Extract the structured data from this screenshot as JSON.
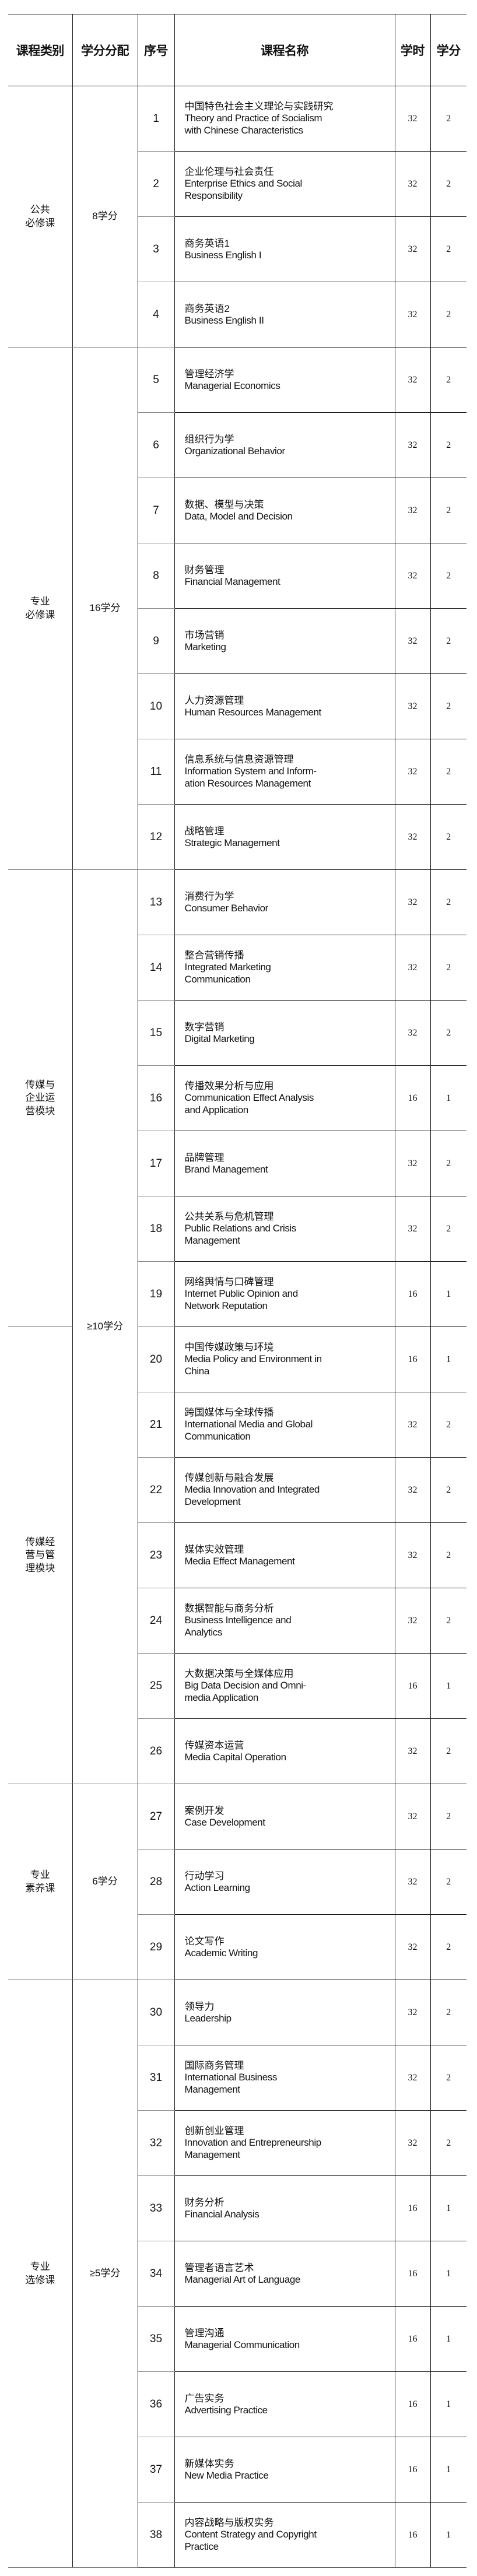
{
  "header": {
    "category": "课程类别",
    "credit_allocation": "学分分配",
    "no": "序号",
    "course_name": "课程名称",
    "hours": "学时",
    "credits": "学分"
  },
  "groups": [
    {
      "credits": "8学分",
      "categories": [
        {
          "name": "公共\n必修课",
          "courses": [
            {
              "no": "1",
              "zh": "中国特色社会主义理论与实践研究",
              "en": "Theory and Practice of Socialism\nwith Chinese Characteristics",
              "hours": "32",
              "credits": "2"
            },
            {
              "no": "2",
              "zh": "企业伦理与社会责任",
              "en": "Enterprise Ethics and Social\nResponsibility",
              "hours": "32",
              "credits": "2"
            },
            {
              "no": "3",
              "zh": "商务英语1",
              "en": "Business English I",
              "hours": "32",
              "credits": "2"
            },
            {
              "no": "4",
              "zh": "商务英语2",
              "en": "Business English II",
              "hours": "32",
              "credits": "2"
            }
          ]
        }
      ]
    },
    {
      "credits": "16学分",
      "categories": [
        {
          "name": "专业\n必修课",
          "courses": [
            {
              "no": "5",
              "zh": "管理经济学",
              "en": "Managerial Economics",
              "hours": "32",
              "credits": "2"
            },
            {
              "no": "6",
              "zh": "组织行为学",
              "en": "Organizational Behavior",
              "hours": "32",
              "credits": "2"
            },
            {
              "no": "7",
              "zh": "数据、模型与决策",
              "en": "Data, Model and Decision",
              "hours": "32",
              "credits": "2"
            },
            {
              "no": "8",
              "zh": "财务管理",
              "en": "Financial Management",
              "hours": "32",
              "credits": "2"
            },
            {
              "no": "9",
              "zh": "市场营销",
              "en": "Marketing",
              "hours": "32",
              "credits": "2"
            },
            {
              "no": "10",
              "zh": "人力资源管理",
              "en": "Human Resources Management",
              "hours": "32",
              "credits": "2"
            },
            {
              "no": "11",
              "zh": "信息系统与信息资源管理",
              "en": "Information System and Inform-\nation Resources Management",
              "hours": "32",
              "credits": "2"
            },
            {
              "no": "12",
              "zh": "战略管理",
              "en": "Strategic Management",
              "hours": "32",
              "credits": "2"
            }
          ]
        }
      ]
    },
    {
      "credits": "≥10学分",
      "categories": [
        {
          "name": "传媒与\n企业运\n营模块",
          "courses": [
            {
              "no": "13",
              "zh": "消费行为学",
              "en": "Consumer Behavior",
              "hours": "32",
              "credits": "2"
            },
            {
              "no": "14",
              "zh": "整合营销传播",
              "en": "Integrated Marketing\nCommunication",
              "hours": "32",
              "credits": "2"
            },
            {
              "no": "15",
              "zh": "数字营销",
              "en": "Digital Marketing",
              "hours": "32",
              "credits": "2"
            },
            {
              "no": "16",
              "zh": "传播效果分析与应用",
              "en": "Communication Effect Analysis\nand Application",
              "hours": "16",
              "credits": "1"
            },
            {
              "no": "17",
              "zh": "品牌管理",
              "en": "Brand Management",
              "hours": "32",
              "credits": "2"
            },
            {
              "no": "18",
              "zh": "公共关系与危机管理",
              "en": "Public Relations and Crisis\nManagement",
              "hours": "32",
              "credits": "2"
            },
            {
              "no": "19",
              "zh": "网络舆情与口碑管理",
              "en": "Internet Public Opinion and\nNetwork Reputation",
              "hours": "16",
              "credits": "1"
            }
          ]
        },
        {
          "name": "传媒经\n营与管\n理模块",
          "courses": [
            {
              "no": "20",
              "zh": "中国传媒政策与环境",
              "en": "Media Policy and Environment in\nChina",
              "hours": "16",
              "credits": "1"
            },
            {
              "no": "21",
              "zh": "跨国媒体与全球传播",
              "en": "International Media and Global\nCommunication",
              "hours": "32",
              "credits": "2"
            },
            {
              "no": "22",
              "zh": "传媒创新与融合发展",
              "en": "Media Innovation and Integrated\nDevelopment",
              "hours": "32",
              "credits": "2"
            },
            {
              "no": "23",
              "zh": "媒体实效管理",
              "en": "Media Effect Management",
              "hours": "32",
              "credits": "2"
            },
            {
              "no": "24",
              "zh": "数据智能与商务分析",
              "en": "Business Intelligence and\nAnalytics",
              "hours": "32",
              "credits": "2"
            },
            {
              "no": "25",
              "zh": "大数据决策与全媒体应用",
              "en": "Big Data Decision and Omni-\nmedia Application",
              "hours": "16",
              "credits": "1"
            },
            {
              "no": "26",
              "zh": "传媒资本运营",
              "en": "Media Capital Operation",
              "hours": "32",
              "credits": "2"
            }
          ]
        }
      ]
    },
    {
      "credits": "6学分",
      "categories": [
        {
          "name": "专业\n素养课",
          "courses": [
            {
              "no": "27",
              "zh": "案例开发",
              "en": "Case Development",
              "hours": "32",
              "credits": "2"
            },
            {
              "no": "28",
              "zh": "行动学习",
              "en": "Action Learning",
              "hours": "32",
              "credits": "2"
            },
            {
              "no": "29",
              "zh": "论文写作",
              "en": "Academic Writing",
              "hours": "32",
              "credits": "2"
            }
          ]
        }
      ]
    },
    {
      "credits": "≥5学分",
      "categories": [
        {
          "name": "专业\n选修课",
          "courses": [
            {
              "no": "30",
              "zh": "领导力",
              "en": "Leadership",
              "hours": "32",
              "credits": "2"
            },
            {
              "no": "31",
              "zh": "国际商务管理",
              "en": "International Business\nManagement",
              "hours": "32",
              "credits": "2"
            },
            {
              "no": "32",
              "zh": "创新创业管理",
              "en": "Innovation and Entrepreneurship\nManagement",
              "hours": "32",
              "credits": "2"
            },
            {
              "no": "33",
              "zh": "财务分析",
              "en": "Financial Analysis",
              "hours": "16",
              "credits": "1"
            },
            {
              "no": "34",
              "zh": "管理者语言艺术",
              "en": "Managerial Art of Language",
              "hours": "16",
              "credits": "1"
            },
            {
              "no": "35",
              "zh": "管理沟通",
              "en": "Managerial Communication",
              "hours": "16",
              "credits": "1"
            },
            {
              "no": "36",
              "zh": "广告实务",
              "en": "Advertising Practice",
              "hours": "16",
              "credits": "1"
            },
            {
              "no": "37",
              "zh": "新媒体实务",
              "en": "New Media Practice",
              "hours": "16",
              "credits": "1"
            },
            {
              "no": "38",
              "zh": "内容战略与版权实务",
              "en": "Content Strategy and Copyright\nPractice",
              "hours": "16",
              "credits": "1"
            }
          ]
        }
      ]
    }
  ]
}
